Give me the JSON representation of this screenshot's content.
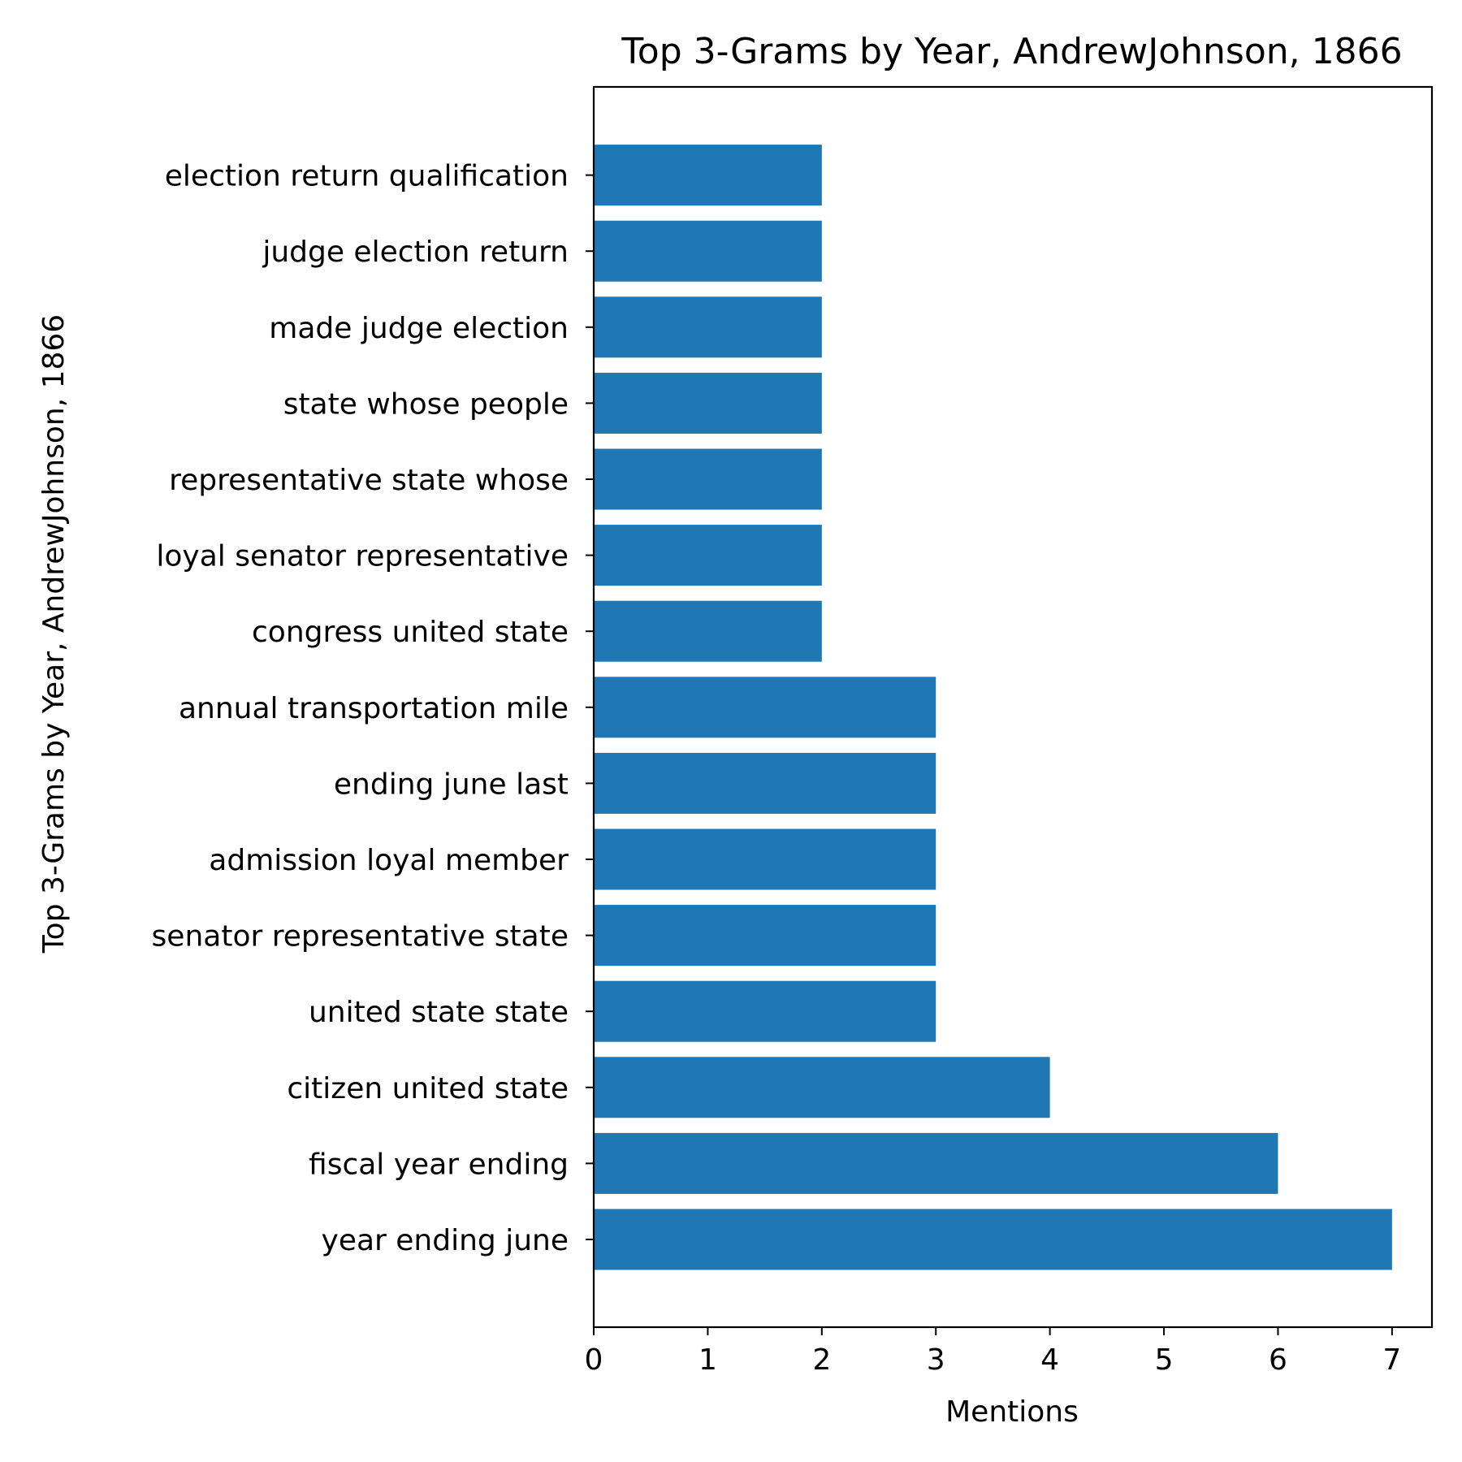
{
  "chart_data": {
    "type": "bar",
    "orientation": "horizontal",
    "title": "Top 3-Grams by Year, AndrewJohnson, 1866",
    "xlabel": "Mentions",
    "ylabel": "Top 3-Grams by Year, AndrewJohnson, 1866",
    "categories": [
      "year ending june",
      "fiscal year ending",
      "citizen united state",
      "united state state",
      "senator representative state",
      "admission loyal member",
      "ending june last",
      "annual transportation mile",
      "congress united state",
      "loyal senator representative",
      "representative state whose",
      "state whose people",
      "made judge election",
      "judge election return",
      "election return qualification"
    ],
    "values": [
      7,
      6,
      4,
      3,
      3,
      3,
      3,
      3,
      2,
      2,
      2,
      2,
      2,
      2,
      2
    ],
    "xlim": [
      0,
      7.35
    ],
    "xticks": [
      "0",
      "1",
      "2",
      "3",
      "4",
      "5",
      "6",
      "7"
    ],
    "bar_color": "#1f77b4",
    "grid": false
  }
}
